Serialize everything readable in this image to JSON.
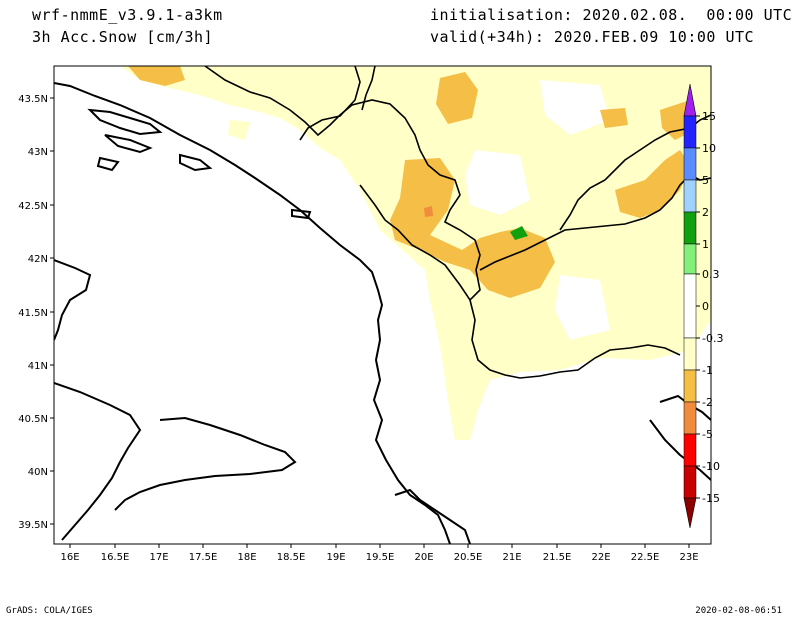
{
  "header": {
    "model": "wrf-nmmE_v3.9.1-a3km",
    "variable": "3h Acc.Snow [cm/3h]",
    "init": "initialisation: 2020.02.08.  00:00 UTC",
    "valid": "valid(+34h): 2020.FEB.09 10:00 UTC"
  },
  "axes": {
    "lat_labels": [
      "43.5N",
      "43N",
      "42.5N",
      "42N",
      "41.5N",
      "41N",
      "40.5N",
      "40N",
      "39.5N"
    ],
    "lon_labels": [
      "16E",
      "16.5E",
      "17E",
      "17.5E",
      "18E",
      "18.5E",
      "19E",
      "19.5E",
      "20E",
      "20.5E",
      "21E",
      "21.5E",
      "22E",
      "22.5E",
      "23E"
    ]
  },
  "colorbar": {
    "labels": [
      "15",
      "10",
      "5",
      "2",
      "1",
      "0.3",
      "0",
      "-0.3",
      "-1",
      "-2",
      "-5",
      "-10",
      "-15"
    ],
    "colors": {
      "purple": "#a020f0",
      "blue_dark": "#2323ff",
      "blue_mid": "#5a8cff",
      "blue_light": "#a0d2ff",
      "green_dark": "#10a010",
      "green_light": "#82f07a",
      "white": "#ffffff",
      "cream": "#ffffc8",
      "gold": "#f5be46",
      "orange": "#f08c3c",
      "red": "#ff0000",
      "red_dark": "#c80000",
      "maroon": "#8c0000"
    }
  },
  "footer": {
    "left": "GrADS: COLA/IGES",
    "right": "2020-02-08-06:51"
  }
}
